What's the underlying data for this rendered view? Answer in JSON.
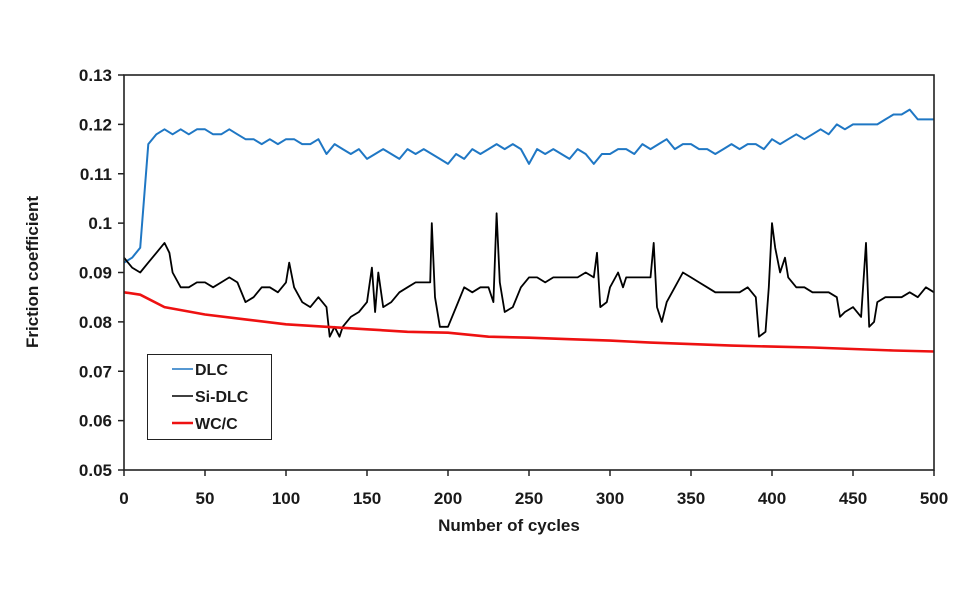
{
  "chart_data": {
    "type": "line",
    "title": "",
    "xlabel": "Number of cycles",
    "ylabel": "Friction coefficient",
    "xlim": [
      0,
      500
    ],
    "ylim": [
      0.05,
      0.13
    ],
    "xticks": [
      "0",
      "50",
      "100",
      "150",
      "200",
      "250",
      "300",
      "350",
      "400",
      "450",
      "500"
    ],
    "yticks": [
      "0.05",
      "0.06",
      "0.07",
      "0.08",
      "0.09",
      "0.1",
      "0.11",
      "0.12",
      "0.13"
    ],
    "grid": false,
    "legend_placement": "bottom-left",
    "series": [
      {
        "name": "DLC",
        "color": "#1f77c4",
        "x": [
          0,
          5,
          10,
          15,
          20,
          25,
          30,
          35,
          40,
          45,
          50,
          55,
          60,
          65,
          70,
          75,
          80,
          85,
          90,
          95,
          100,
          105,
          110,
          115,
          120,
          125,
          130,
          135,
          140,
          145,
          150,
          155,
          160,
          165,
          170,
          175,
          180,
          185,
          190,
          195,
          200,
          205,
          210,
          215,
          220,
          225,
          230,
          235,
          240,
          245,
          250,
          255,
          260,
          265,
          270,
          275,
          280,
          285,
          290,
          295,
          300,
          305,
          310,
          315,
          320,
          325,
          330,
          335,
          340,
          345,
          350,
          355,
          360,
          365,
          370,
          375,
          380,
          385,
          390,
          395,
          400,
          405,
          410,
          415,
          420,
          425,
          430,
          435,
          440,
          445,
          450,
          455,
          460,
          465,
          470,
          475,
          480,
          485,
          490,
          495,
          500
        ],
        "y": [
          0.092,
          0.093,
          0.095,
          0.116,
          0.118,
          0.119,
          0.118,
          0.119,
          0.118,
          0.119,
          0.119,
          0.118,
          0.118,
          0.119,
          0.118,
          0.117,
          0.117,
          0.116,
          0.117,
          0.116,
          0.117,
          0.117,
          0.116,
          0.116,
          0.117,
          0.114,
          0.116,
          0.115,
          0.114,
          0.115,
          0.113,
          0.114,
          0.115,
          0.114,
          0.113,
          0.115,
          0.114,
          0.115,
          0.114,
          0.113,
          0.112,
          0.114,
          0.113,
          0.115,
          0.114,
          0.115,
          0.116,
          0.115,
          0.116,
          0.115,
          0.112,
          0.115,
          0.114,
          0.115,
          0.114,
          0.113,
          0.115,
          0.114,
          0.112,
          0.114,
          0.114,
          0.115,
          0.115,
          0.114,
          0.116,
          0.115,
          0.116,
          0.117,
          0.115,
          0.116,
          0.116,
          0.115,
          0.115,
          0.114,
          0.115,
          0.116,
          0.115,
          0.116,
          0.116,
          0.115,
          0.117,
          0.116,
          0.117,
          0.118,
          0.117,
          0.118,
          0.119,
          0.118,
          0.12,
          0.119,
          0.12,
          0.12,
          0.12,
          0.12,
          0.121,
          0.122,
          0.122,
          0.123,
          0.121,
          0.121,
          0.121
        ]
      },
      {
        "name": "Si-DLC",
        "color": "#000000",
        "x": [
          0,
          5,
          10,
          15,
          20,
          25,
          28,
          30,
          35,
          40,
          45,
          50,
          55,
          60,
          65,
          70,
          75,
          80,
          85,
          90,
          95,
          100,
          102,
          105,
          110,
          115,
          120,
          125,
          127,
          130,
          133,
          135,
          140,
          145,
          150,
          153,
          155,
          157,
          160,
          165,
          170,
          175,
          180,
          185,
          189,
          190,
          192,
          195,
          200,
          205,
          210,
          215,
          220,
          225,
          228,
          230,
          232,
          235,
          240,
          245,
          250,
          255,
          260,
          265,
          270,
          275,
          280,
          285,
          290,
          292,
          294,
          298,
          300,
          305,
          308,
          310,
          315,
          320,
          325,
          327,
          329,
          332,
          335,
          340,
          345,
          350,
          355,
          360,
          365,
          370,
          375,
          380,
          385,
          390,
          392,
          396,
          398,
          400,
          402,
          405,
          408,
          410,
          415,
          420,
          425,
          430,
          435,
          440,
          442,
          445,
          450,
          455,
          458,
          460,
          463,
          465,
          470,
          475,
          480,
          485,
          490,
          495,
          500
        ],
        "y": [
          0.093,
          0.091,
          0.09,
          0.092,
          0.094,
          0.096,
          0.094,
          0.09,
          0.087,
          0.087,
          0.088,
          0.088,
          0.087,
          0.088,
          0.089,
          0.088,
          0.084,
          0.085,
          0.087,
          0.087,
          0.086,
          0.088,
          0.092,
          0.087,
          0.084,
          0.083,
          0.085,
          0.083,
          0.077,
          0.079,
          0.077,
          0.079,
          0.081,
          0.082,
          0.084,
          0.091,
          0.082,
          0.09,
          0.083,
          0.084,
          0.086,
          0.087,
          0.088,
          0.088,
          0.088,
          0.1,
          0.085,
          0.079,
          0.079,
          0.083,
          0.087,
          0.086,
          0.087,
          0.087,
          0.084,
          0.102,
          0.088,
          0.082,
          0.083,
          0.087,
          0.089,
          0.089,
          0.088,
          0.089,
          0.089,
          0.089,
          0.089,
          0.09,
          0.089,
          0.094,
          0.083,
          0.084,
          0.087,
          0.09,
          0.087,
          0.089,
          0.089,
          0.089,
          0.089,
          0.096,
          0.083,
          0.08,
          0.084,
          0.087,
          0.09,
          0.089,
          0.088,
          0.087,
          0.086,
          0.086,
          0.086,
          0.086,
          0.087,
          0.085,
          0.077,
          0.078,
          0.087,
          0.1,
          0.095,
          0.09,
          0.093,
          0.089,
          0.087,
          0.087,
          0.086,
          0.086,
          0.086,
          0.085,
          0.081,
          0.082,
          0.083,
          0.081,
          0.096,
          0.079,
          0.08,
          0.084,
          0.085,
          0.085,
          0.085,
          0.086,
          0.085,
          0.087,
          0.086
        ]
      },
      {
        "name": "WC/C",
        "color": "#ee1111",
        "x": [
          0,
          10,
          25,
          50,
          75,
          100,
          125,
          150,
          175,
          200,
          225,
          250,
          275,
          300,
          325,
          350,
          375,
          400,
          425,
          450,
          475,
          500
        ],
        "y": [
          0.086,
          0.0855,
          0.083,
          0.0815,
          0.0805,
          0.0795,
          0.079,
          0.0785,
          0.078,
          0.0778,
          0.077,
          0.0768,
          0.0765,
          0.0762,
          0.0758,
          0.0755,
          0.0752,
          0.075,
          0.0748,
          0.0745,
          0.0742,
          0.074
        ]
      }
    ]
  }
}
